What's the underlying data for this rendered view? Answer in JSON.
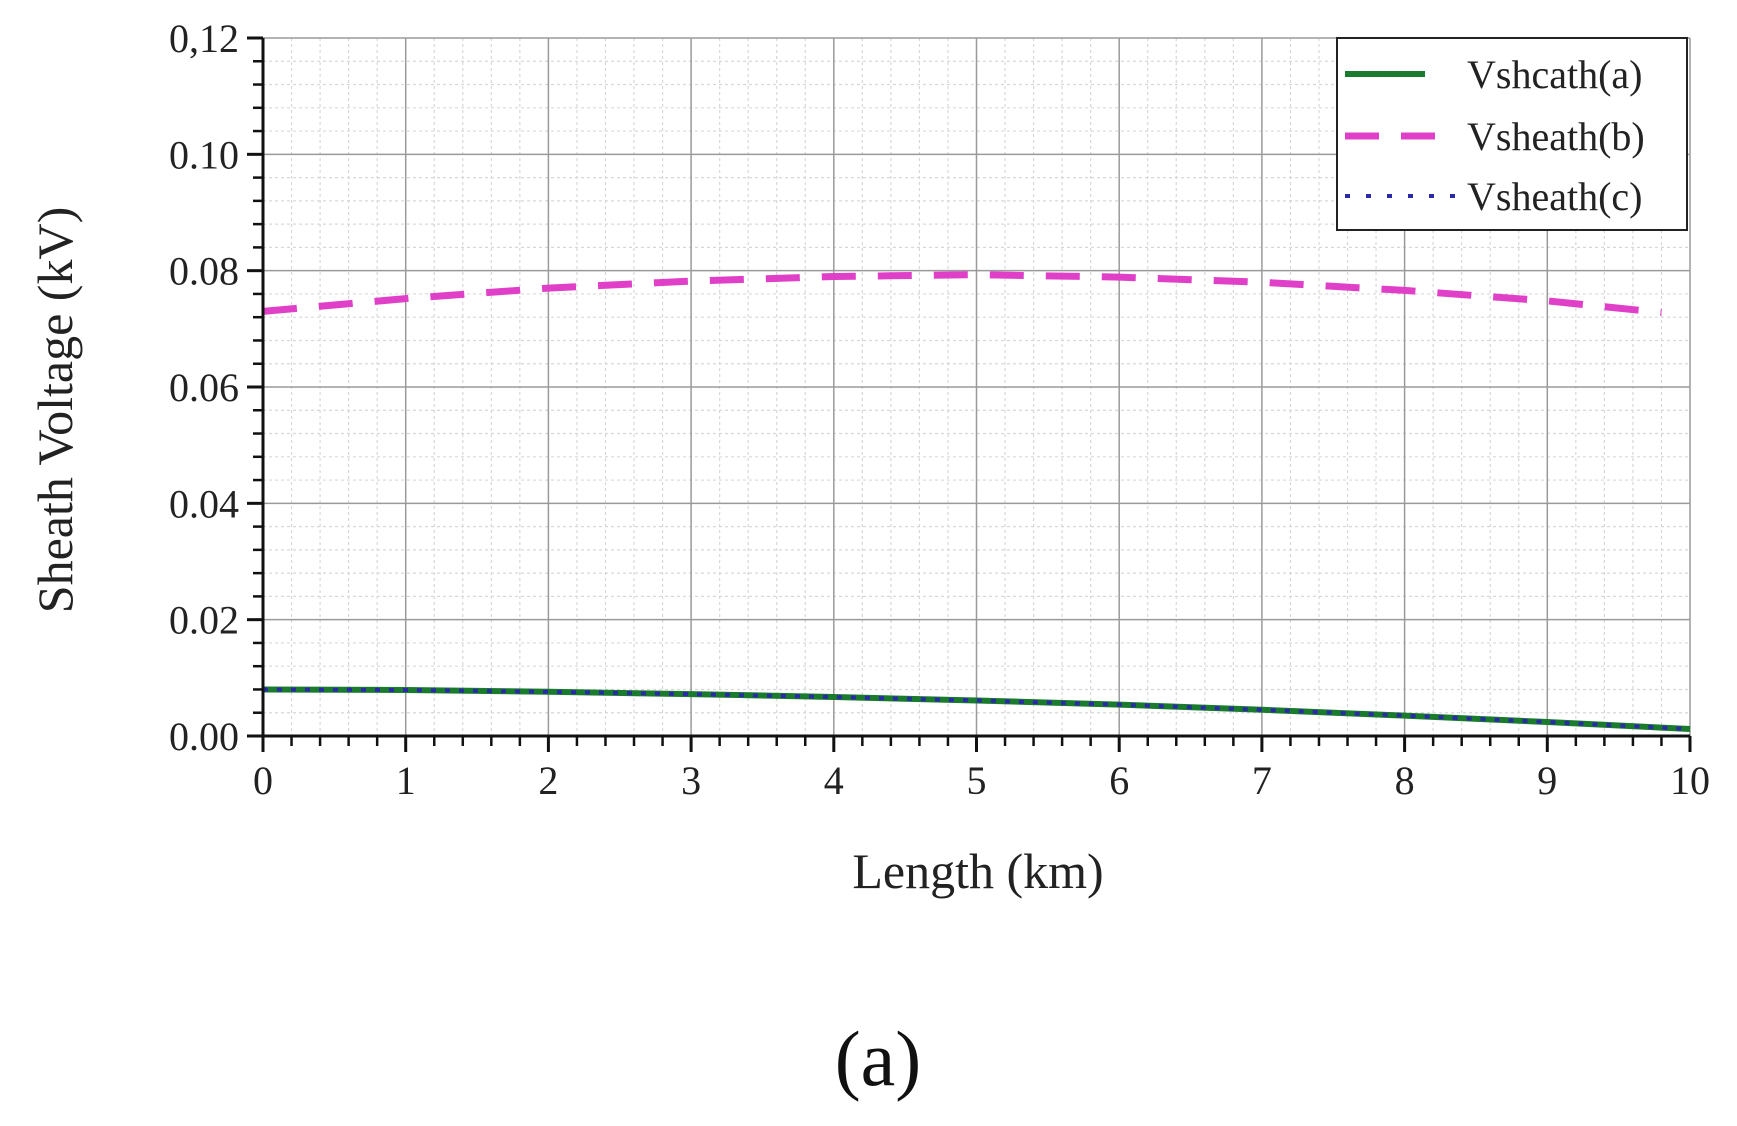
{
  "chart_data": {
    "type": "line",
    "xlabel": "Length (km)",
    "ylabel": "Sheath Voltage (kV)",
    "xlim": [
      0,
      10
    ],
    "ylim": [
      0,
      0.12
    ],
    "x_ticks": [
      0,
      1,
      2,
      3,
      4,
      5,
      6,
      7,
      8,
      9,
      10
    ],
    "x_tick_labels": [
      "0",
      "1",
      "2",
      "3",
      "4",
      "5",
      "6",
      "7",
      "8",
      "9",
      "10"
    ],
    "y_ticks": [
      0,
      0.02,
      0.04,
      0.06,
      0.08,
      0.1,
      0.12
    ],
    "y_tick_labels": [
      "0.00",
      "0.02",
      "0.04",
      "0.06",
      "0.08",
      "0.10",
      "0,12"
    ],
    "grid": true,
    "legend_position": "top-right",
    "series": [
      {
        "name": "Vshcath(a)",
        "color": "#1a7a2e",
        "style": "solid",
        "x": [
          0,
          1,
          2,
          3,
          4,
          5,
          6,
          7,
          8,
          9,
          10
        ],
        "y": [
          0.008,
          0.0079,
          0.0076,
          0.0072,
          0.0067,
          0.0061,
          0.0054,
          0.0045,
          0.0035,
          0.0024,
          0.0012
        ]
      },
      {
        "name": "Vsheath(b)",
        "color": "#e040c8",
        "style": "dashed",
        "x": [
          0,
          1,
          2,
          3,
          4,
          5,
          6,
          7,
          8,
          9,
          9.8
        ],
        "y": [
          0.073,
          0.0752,
          0.077,
          0.0782,
          0.079,
          0.0793,
          0.0789,
          0.078,
          0.0766,
          0.0748,
          0.0728
        ]
      },
      {
        "name": "Vsheath(c)",
        "color": "#2a2aa8",
        "style": "dotted",
        "x": [
          0,
          1,
          2,
          3,
          4,
          5,
          6,
          7,
          8,
          9,
          10
        ],
        "y": [
          0.008,
          0.0079,
          0.0076,
          0.0072,
          0.0067,
          0.0061,
          0.0054,
          0.0045,
          0.0035,
          0.0024,
          0.0012
        ]
      }
    ]
  },
  "panel_label": "(a)"
}
